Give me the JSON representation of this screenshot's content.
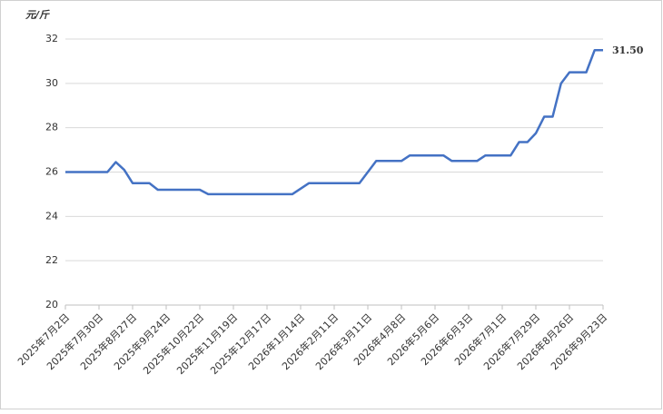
{
  "chart_data": {
    "type": "line",
    "y_label": "元/斤",
    "categories": [
      "2025年7月2日",
      null,
      null,
      null,
      "2025年7月30日",
      null,
      null,
      null,
      "2025年8月27日",
      null,
      null,
      null,
      "2025年9月24日",
      null,
      null,
      null,
      "2025年10月22日",
      null,
      null,
      null,
      "2025年11月19日",
      null,
      null,
      null,
      "2025年12月17日",
      null,
      null,
      null,
      "2026年1月14日",
      null,
      null,
      null,
      "2026年2月11日",
      null,
      null,
      null,
      "2026年3月11日",
      null,
      null,
      null,
      "2026年4月8日",
      null,
      null,
      null,
      "2026年5月6日",
      null,
      null,
      null,
      "2026年6月3日",
      null,
      null,
      null,
      "2026年7月1日",
      null,
      null,
      null,
      "2026年7月29日",
      null,
      null,
      null,
      "2026年8月26日",
      null,
      null,
      null,
      "2026年9月23日"
    ],
    "values": [
      26,
      26,
      26,
      26,
      26,
      26,
      26.45,
      26.1,
      25.5,
      25.5,
      25.5,
      25.2,
      25.2,
      25.2,
      25.2,
      25.2,
      25.2,
      25,
      25,
      25,
      25,
      25,
      25,
      25,
      25,
      25,
      25,
      25,
      25.25,
      25.5,
      25.5,
      25.5,
      25.5,
      25.5,
      25.5,
      25.5,
      26,
      26.5,
      26.5,
      26.5,
      26.5,
      26.75,
      26.75,
      26.75,
      26.75,
      26.75,
      26.5,
      26.5,
      26.5,
      26.5,
      26.75,
      26.75,
      26.75,
      26.75,
      27.35,
      27.35,
      27.75,
      28.5,
      28.5,
      30,
      30.5,
      30.5,
      30.5,
      31.5,
      31.5
    ],
    "value_labels": [
      null,
      null,
      null,
      null,
      null,
      null,
      null,
      null,
      null,
      null,
      null,
      null,
      null,
      null,
      null,
      null,
      null,
      null,
      null,
      null,
      null,
      null,
      null,
      null,
      null,
      null,
      null,
      null,
      null,
      null,
      null,
      null,
      null,
      null,
      null,
      null,
      null,
      null,
      null,
      null,
      null,
      null,
      null,
      null,
      null,
      null,
      null,
      null,
      null,
      null,
      null,
      null,
      null,
      null,
      null,
      null,
      null,
      null,
      null,
      null,
      null,
      null,
      null,
      null,
      "31.50"
    ],
    "color": "#4472c4",
    "ylim": [
      20,
      32
    ],
    "yticks": [
      20,
      22,
      24,
      26,
      28,
      30,
      32
    ],
    "grid": true
  }
}
